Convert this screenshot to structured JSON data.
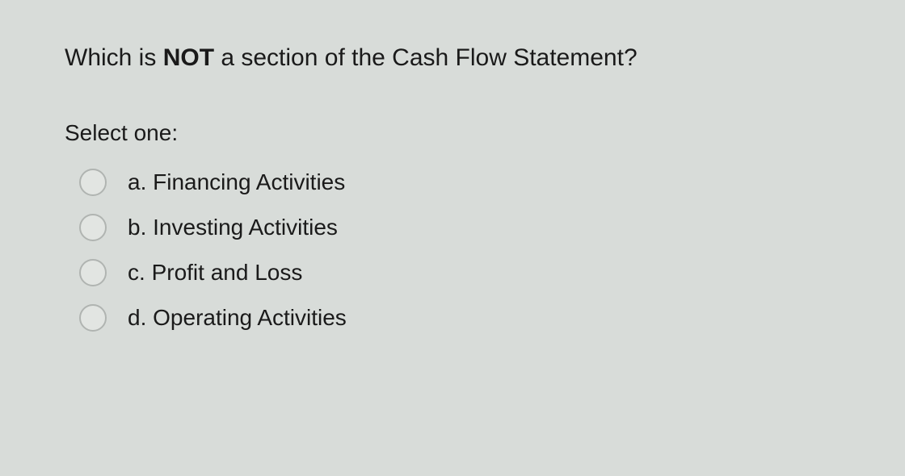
{
  "question": {
    "prefix": "Which is ",
    "emphasis": "NOT",
    "suffix": " a section of the Cash Flow Statement?"
  },
  "prompt": "Select one:",
  "options": [
    {
      "letter": "a.",
      "text": "Financing Activities"
    },
    {
      "letter": "b.",
      "text": "Investing Activities"
    },
    {
      "letter": "c.",
      "text": "Profit and Loss"
    },
    {
      "letter": "d.",
      "text": "Operating Activities"
    }
  ],
  "colors": {
    "background": "#d8dcd9",
    "text": "#1a1a1a",
    "radio_border": "#b0b4b1",
    "radio_fill": "#e2e5e2"
  },
  "typography": {
    "question_fontsize": 30,
    "option_fontsize": 28,
    "prompt_fontsize": 28,
    "emphasis_weight": 700
  }
}
